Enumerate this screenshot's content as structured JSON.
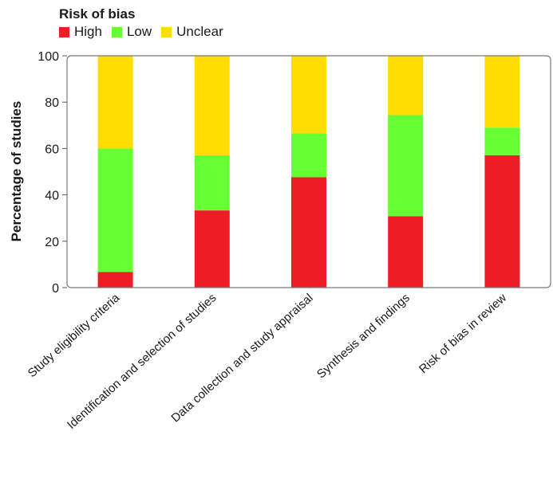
{
  "chart_data": {
    "type": "bar",
    "stacked": true,
    "legend": {
      "title": "Risk of bias",
      "placement": "top-left",
      "entries": [
        {
          "name": "High",
          "color": "#ee1c25"
        },
        {
          "name": "Low",
          "color": "#66ff33"
        },
        {
          "name": "Unclear",
          "color": "#ffdd00"
        }
      ]
    },
    "ylabel": "Percentage of studies",
    "xlabel": "",
    "ylim": [
      0,
      100
    ],
    "yticks": [
      0,
      20,
      40,
      60,
      80,
      100
    ],
    "grid": false,
    "categories": [
      "Study eligibility criteria",
      "Identification and selection of studies",
      "Data collection and study appraisal",
      "Synthesis and findings",
      "Risk of bias in review"
    ],
    "series": [
      {
        "name": "High",
        "color": "#ee1c25",
        "values": [
          6.7,
          33.3,
          47.6,
          30.8,
          57.1
        ]
      },
      {
        "name": "Low",
        "color": "#66ff33",
        "values": [
          53.3,
          23.8,
          19.0,
          43.6,
          11.9
        ]
      },
      {
        "name": "Unclear",
        "color": "#ffdd00",
        "values": [
          40.0,
          42.9,
          33.4,
          25.6,
          31.0
        ]
      }
    ]
  }
}
